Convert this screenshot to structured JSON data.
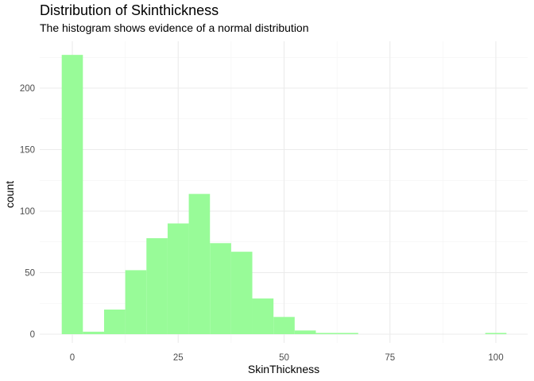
{
  "chart_data": {
    "type": "histogram",
    "title": "Distribution of Skinthickness",
    "subtitle": "The histogram shows evidence of a normal distribution",
    "xlabel": "SkinThickness",
    "ylabel": "count",
    "bin_width": 5,
    "xlim": [
      -5,
      104
    ],
    "ylim": [
      0,
      235
    ],
    "x_ticks": [
      0,
      25,
      50,
      75,
      100
    ],
    "y_ticks": [
      0,
      50,
      100,
      150,
      200
    ],
    "bins": [
      {
        "center": 0,
        "count": 227
      },
      {
        "center": 5,
        "count": 2
      },
      {
        "center": 10,
        "count": 20
      },
      {
        "center": 15,
        "count": 52
      },
      {
        "center": 20,
        "count": 78
      },
      {
        "center": 25,
        "count": 90
      },
      {
        "center": 30,
        "count": 114
      },
      {
        "center": 35,
        "count": 74
      },
      {
        "center": 40,
        "count": 67
      },
      {
        "center": 45,
        "count": 29
      },
      {
        "center": 50,
        "count": 14
      },
      {
        "center": 55,
        "count": 3
      },
      {
        "center": 60,
        "count": 1
      },
      {
        "center": 65,
        "count": 1
      },
      {
        "center": 70,
        "count": 0
      },
      {
        "center": 75,
        "count": 0
      },
      {
        "center": 80,
        "count": 0
      },
      {
        "center": 85,
        "count": 0
      },
      {
        "center": 90,
        "count": 0
      },
      {
        "center": 95,
        "count": 0
      },
      {
        "center": 100,
        "count": 1
      }
    ],
    "bar_color": "#98FB98",
    "grid": true,
    "theme": "minimal"
  }
}
